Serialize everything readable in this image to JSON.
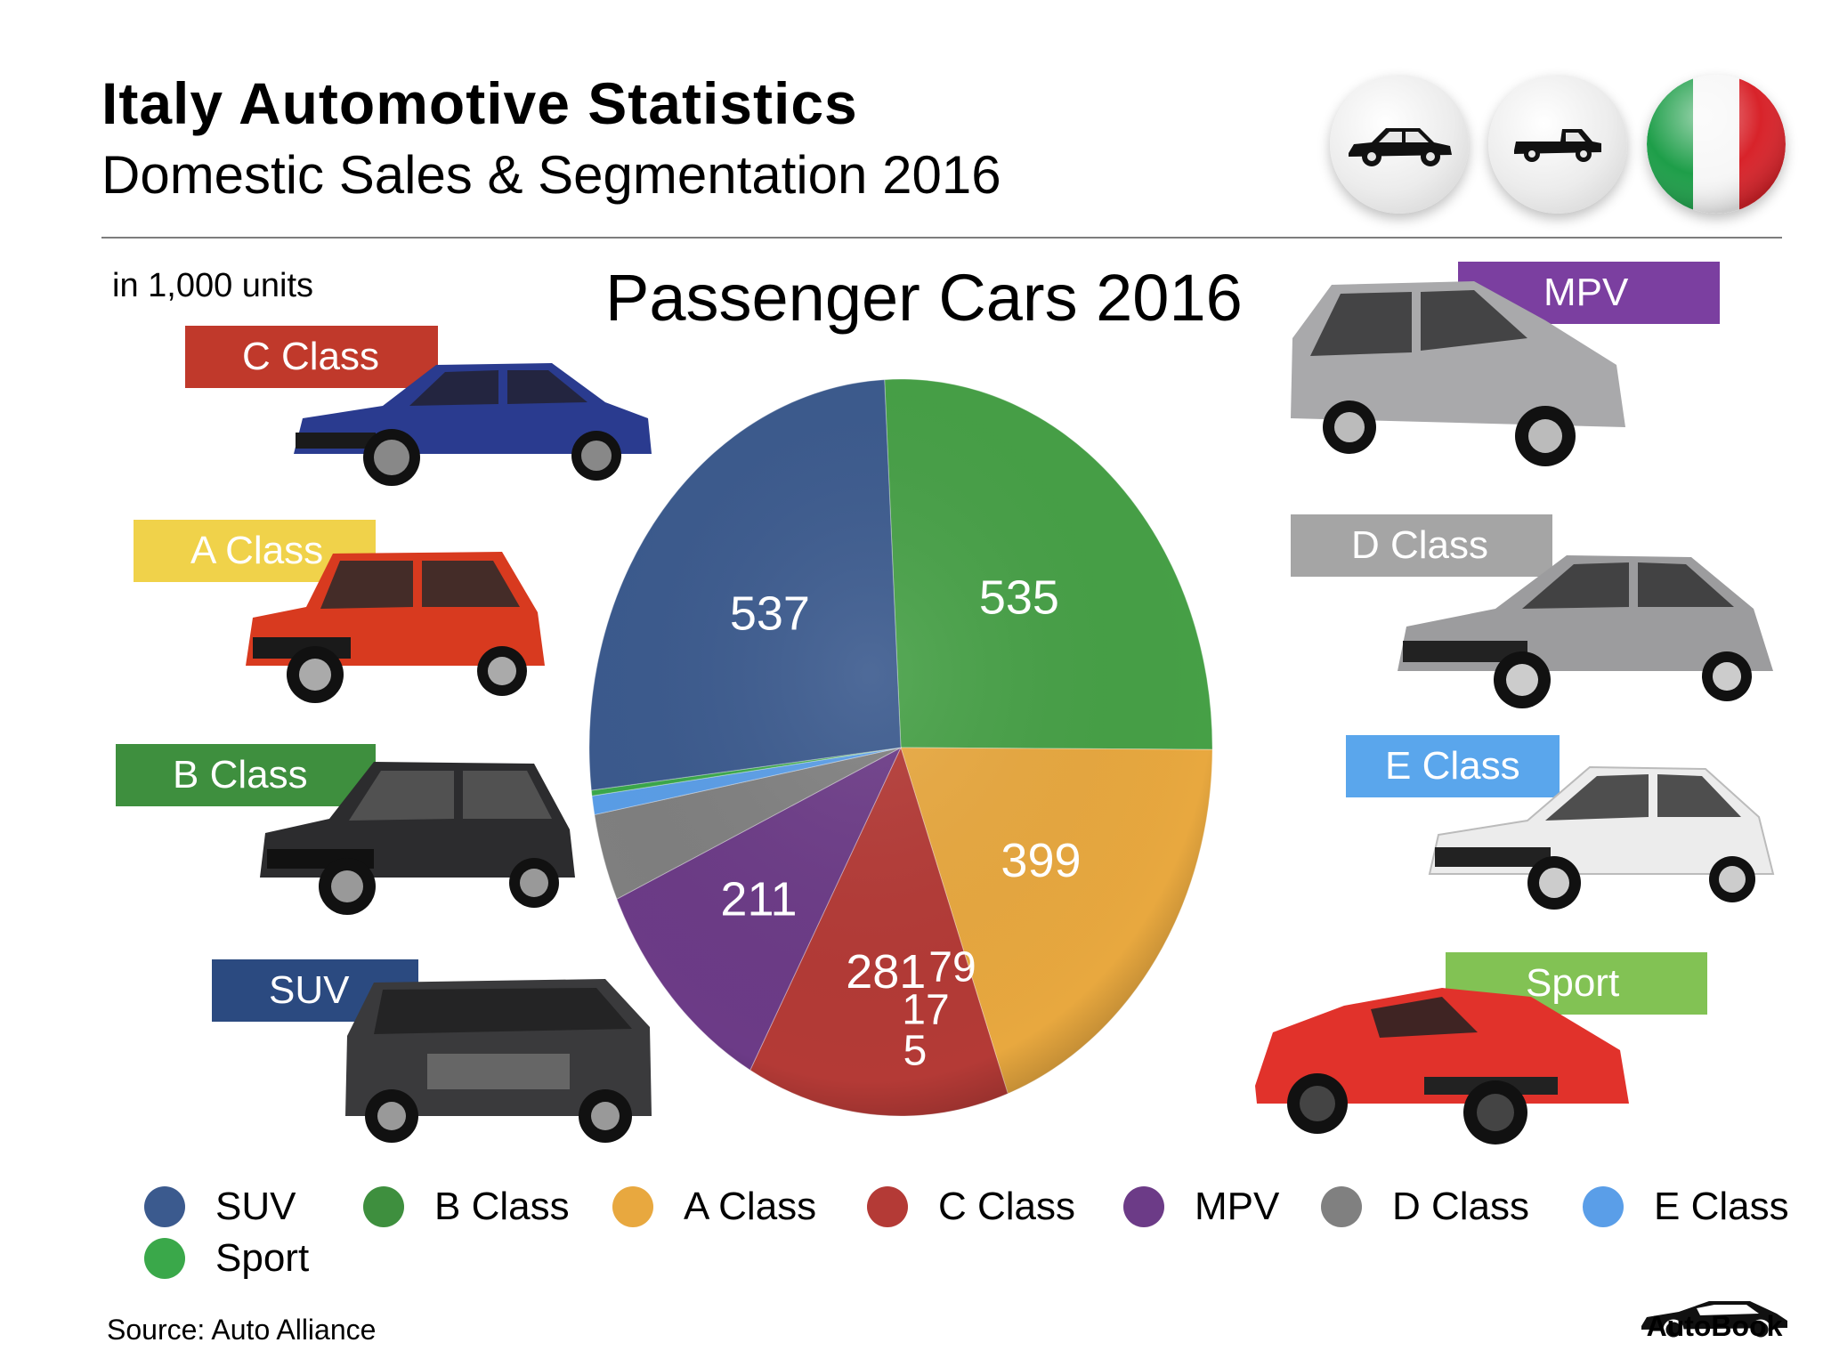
{
  "header": {
    "title": "Italy Automotive Statistics",
    "subtitle": "Domestic Sales & Segmentation 2016",
    "unit_note": "in 1,000 units",
    "icons": [
      "sedan-icon",
      "pickup-truck-icon",
      "italy-flag-icon"
    ]
  },
  "segment_labels": [
    {
      "text": "C Class",
      "color": "#c0392b"
    },
    {
      "text": "A Class",
      "color": "#f0d24a"
    },
    {
      "text": "B Class",
      "color": "#3e8f3e"
    },
    {
      "text": "SUV",
      "color": "#2b4a80"
    },
    {
      "text": "MPV",
      "color": "#7b3fa0"
    },
    {
      "text": "D Class",
      "color": "#a5a5a5"
    },
    {
      "text": "E Class",
      "color": "#5aa6ec"
    },
    {
      "text": "Sport",
      "color": "#82c254"
    }
  ],
  "chart_data": {
    "type": "pie",
    "title": "Passenger Cars 2016",
    "unit": "in 1,000 units",
    "slices": [
      {
        "label": "SUV",
        "value": 537,
        "color": "#3b5a8e"
      },
      {
        "label": "B Class",
        "value": 535,
        "color": "#46a046"
      },
      {
        "label": "A Class",
        "value": 399,
        "color": "#e8a83f"
      },
      {
        "label": "C Class",
        "value": 281,
        "color": "#b43a36"
      },
      {
        "label": "MPV",
        "value": 211,
        "color": "#6c3b87"
      },
      {
        "label": "D Class",
        "value": 79,
        "color": "#808080"
      },
      {
        "label": "E Class",
        "value": 17,
        "color": "#5a9ee8"
      },
      {
        "label": "Sport",
        "value": 5,
        "color": "#3aa84a"
      }
    ],
    "legend": [
      {
        "label": "SUV",
        "color": "#3b5a8e"
      },
      {
        "label": "B Class",
        "color": "#3e8f3e"
      },
      {
        "label": "A Class",
        "color": "#e8a83f"
      },
      {
        "label": "C Class",
        "color": "#b43a36"
      },
      {
        "label": "MPV",
        "color": "#6c3b87"
      },
      {
        "label": "D Class",
        "color": "#808080"
      },
      {
        "label": "E Class",
        "color": "#5a9ee8"
      },
      {
        "label": "Sport",
        "color": "#3aa84a"
      }
    ],
    "legend_placement": "bottom"
  },
  "footer": {
    "source": "Source:  Auto Alliance",
    "brand": "AutoBook"
  }
}
